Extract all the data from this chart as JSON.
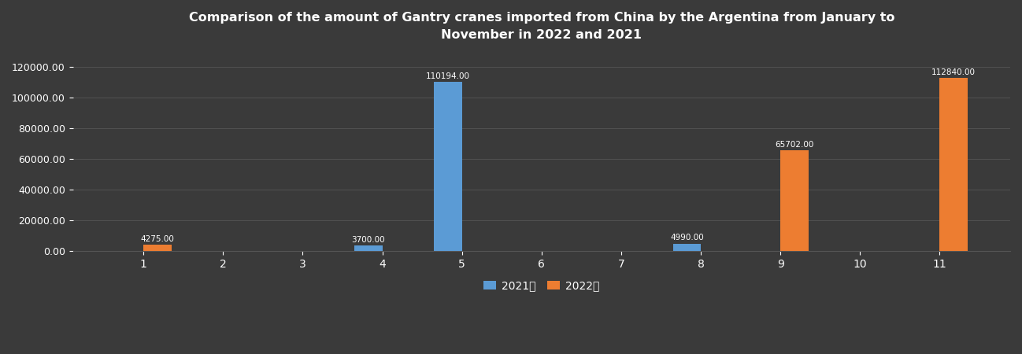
{
  "title": "Comparison of the amount of Gantry cranes imported from China by the Argentina from January to\nNovember in 2022 and 2021",
  "months": [
    1,
    2,
    3,
    4,
    5,
    6,
    7,
    8,
    9,
    10,
    11
  ],
  "data_2021": [
    0,
    0,
    0,
    3700.0,
    110194.0,
    0,
    0,
    4990.0,
    0,
    0,
    0
  ],
  "data_2022": [
    4275.0,
    0,
    0,
    0,
    0,
    0,
    0,
    0,
    65702.0,
    0,
    112840.0
  ],
  "color_2021": "#5b9bd5",
  "color_2022": "#ed7d31",
  "background_color": "#3a3a3a",
  "text_color": "#ffffff",
  "grid_color": "#555555",
  "ylim": [
    0,
    130000
  ],
  "yticks": [
    0,
    20000,
    40000,
    60000,
    80000,
    100000,
    120000
  ],
  "legend_2021": "2021年",
  "legend_2022": "2022年",
  "bar_width": 0.35
}
